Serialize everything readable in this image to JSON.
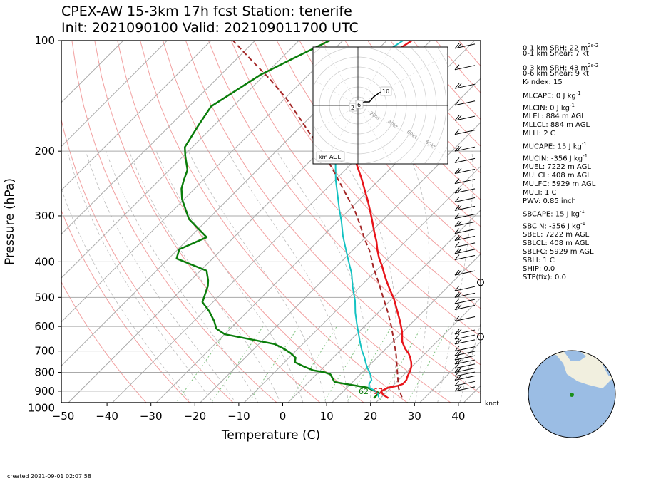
{
  "header": {
    "title_line1": "CPEX-AW 15-3km  17h fcst  Station: tenerife",
    "title_line2": "Init: 2021090100  Valid: 202109011700 UTC"
  },
  "footer": {
    "created": "created 2021-09-01 02:07:58"
  },
  "colors": {
    "temperature": "#e8141a",
    "dewpoint": "#0a7d0a",
    "wetbulb": "#13c2c2",
    "parcel": "#a32626"
  },
  "chart_data": {
    "type": "line",
    "subtype": "skew-T log-P diagram",
    "xlabel": "Temperature (C)",
    "ylabel": "Pressure (hPa)",
    "x_ticks": [
      -50,
      -40,
      -30,
      -20,
      -10,
      0,
      10,
      20,
      30,
      40
    ],
    "y_ticks": [
      100,
      200,
      300,
      400,
      500,
      600,
      700,
      800,
      900,
      1000
    ],
    "xlim": [
      -50,
      45
    ],
    "ylim": [
      1050,
      100
    ],
    "y_scale": "log",
    "skew": "isotherms tilted 45 degrees to the right",
    "grid": true,
    "series": [
      {
        "key": "temperature",
        "points": [
          [
            21.8,
            940
          ],
          [
            19.8,
            920
          ],
          [
            18.6,
            900
          ],
          [
            19.4,
            880
          ],
          [
            21.2,
            870
          ],
          [
            21.9,
            860
          ],
          [
            21.8,
            840
          ],
          [
            21.2,
            820
          ],
          [
            20.5,
            790
          ],
          [
            19.8,
            770
          ],
          [
            18.8,
            750
          ],
          [
            17.6,
            730
          ],
          [
            16.2,
            710
          ],
          [
            14.4,
            690
          ],
          [
            12.1,
            660
          ],
          [
            9.8,
            620
          ],
          [
            6.9,
            580
          ],
          [
            3.6,
            540
          ],
          [
            0.5,
            505
          ],
          [
            -2.7,
            475
          ],
          [
            -5.2,
            452
          ],
          [
            -7.6,
            430
          ],
          [
            -9.8,
            410
          ],
          [
            -12.3,
            390
          ],
          [
            -14.6,
            370
          ],
          [
            -16.6,
            352
          ],
          [
            -19.1,
            333
          ],
          [
            -21.9,
            312
          ],
          [
            -24.8,
            292
          ],
          [
            -27.8,
            273
          ],
          [
            -31.0,
            255
          ],
          [
            -34.2,
            238
          ],
          [
            -37.6,
            222
          ],
          [
            -41.0,
            207
          ],
          [
            -44.4,
            193
          ],
          [
            -47.3,
            178
          ],
          [
            -49.9,
            163
          ],
          [
            -52.6,
            148
          ],
          [
            -56.0,
            132
          ],
          [
            -57.3,
            118
          ],
          [
            -55.9,
            109
          ],
          [
            -54.3,
            100
          ]
        ]
      },
      {
        "key": "dewpoint",
        "points": [
          [
            18.5,
            940
          ],
          [
            18.5,
            910
          ],
          [
            14.6,
            880
          ],
          [
            5.9,
            850
          ],
          [
            3.2,
            810
          ],
          [
            1.5,
            800
          ],
          [
            -1.6,
            790
          ],
          [
            -4.8,
            770
          ],
          [
            -7.7,
            750
          ],
          [
            -8.5,
            730
          ],
          [
            -10.6,
            710
          ],
          [
            -13.2,
            690
          ],
          [
            -16.4,
            670
          ],
          [
            -30.0,
            630
          ],
          [
            -33.2,
            608
          ],
          [
            -35.4,
            580
          ],
          [
            -38.7,
            546
          ],
          [
            -42.4,
            515
          ],
          [
            -43.3,
            496
          ],
          [
            -44.8,
            466
          ],
          [
            -46.0,
            450
          ],
          [
            -48.6,
            423
          ],
          [
            -58.2,
            392
          ],
          [
            -59.7,
            370
          ],
          [
            -56.2,
            343
          ],
          [
            -64.4,
            306
          ],
          [
            -70.5,
            270
          ],
          [
            -73.0,
            253
          ],
          [
            -74.4,
            240
          ],
          [
            -75.9,
            225
          ],
          [
            -79.6,
            206
          ],
          [
            -81.7,
            195
          ],
          [
            -83.5,
            171
          ],
          [
            -85.0,
            151
          ],
          [
            -82.7,
            135
          ],
          [
            -81.0,
            124
          ],
          [
            -77.3,
            112
          ],
          [
            -73.0,
            100
          ]
        ]
      },
      {
        "key": "wetbulb",
        "points": [
          [
            19.4,
            935
          ],
          [
            18.5,
            915
          ],
          [
            16.8,
            895
          ],
          [
            15.0,
            880
          ],
          [
            14.2,
            860
          ],
          [
            13.9,
            840
          ],
          [
            12.3,
            810
          ],
          [
            10.3,
            780
          ],
          [
            8.7,
            755
          ],
          [
            7.2,
            730
          ],
          [
            5.1,
            700
          ],
          [
            2.8,
            665
          ],
          [
            0.5,
            630
          ],
          [
            -2.3,
            590
          ],
          [
            -5.2,
            550
          ],
          [
            -8.0,
            510
          ],
          [
            -11.5,
            470
          ],
          [
            -15.0,
            430
          ],
          [
            -18.5,
            398
          ],
          [
            -22.0,
            368
          ],
          [
            -25.5,
            340
          ],
          [
            -29.2,
            310
          ],
          [
            -32.5,
            287
          ],
          [
            -36.2,
            262
          ],
          [
            -39.8,
            240
          ],
          [
            -43.5,
            217
          ],
          [
            -47.0,
            195
          ],
          [
            -50.5,
            172
          ],
          [
            -53.5,
            150
          ],
          [
            -57.5,
            128
          ],
          [
            -59.0,
            117
          ],
          [
            -57.8,
            108
          ],
          [
            -56.3,
            100
          ]
        ]
      },
      {
        "key": "parcel",
        "points": [
          [
            24.7,
            935
          ],
          [
            21.9,
            884
          ],
          [
            18.0,
            800
          ],
          [
            13.9,
            720
          ],
          [
            9.6,
            650
          ],
          [
            5.8,
            595
          ],
          [
            1.8,
            545
          ],
          [
            -2.8,
            495
          ],
          [
            -6.8,
            455
          ],
          [
            -11.3,
            415
          ],
          [
            -15.8,
            375
          ],
          [
            -20.1,
            345
          ],
          [
            -24.0,
            318
          ],
          [
            -28.6,
            290
          ],
          [
            -33.0,
            268
          ],
          [
            -38.0,
            245
          ],
          [
            -43.5,
            222
          ],
          [
            -49.5,
            200
          ],
          [
            -56.0,
            180
          ],
          [
            -62.0,
            163
          ],
          [
            -70.0,
            143
          ],
          [
            -78.0,
            127
          ],
          [
            -87.0,
            112
          ],
          [
            -95.0,
            100
          ]
        ]
      }
    ],
    "surface_labels": {
      "dewpoint": "62",
      "temperature": "67"
    },
    "wind_units": "knot",
    "wind_barb_pressures": [
      105,
      120,
      135,
      150,
      165,
      180,
      200,
      215,
      230,
      245,
      260,
      275,
      290,
      305,
      320,
      335,
      350,
      365,
      380,
      395,
      435,
      480,
      500,
      520,
      540,
      580,
      630,
      650,
      670,
      700,
      720,
      740,
      760,
      780,
      800,
      820,
      840,
      870,
      900
    ],
    "hodograph": {
      "unit_label": "km AGL",
      "ring_labels": [
        "20kt",
        "40kt",
        "60kt",
        "80kt"
      ],
      "height_markers": [
        "2",
        "6",
        "10"
      ]
    },
    "indices": {
      "srh01": "0-1 km SRH: 22 m",
      "shear01": "0-1 km Shear: 7 kt",
      "srh03": "0-3 km SRH: 43 m",
      "shear06": "0-6 km Shear: 9 kt",
      "kindex": "K-index: 15",
      "mlcape": "MLCAPE: 0 J kg",
      "mlcin": "MLCIN: 0 J kg",
      "mlel": "MLEL: 884 m AGL",
      "mllcl": "MLLCL: 884 m AGL",
      "mlli": "MLLI: 2 C",
      "mucape": "MUCAPE: 15 J kg",
      "mucin": "MUCIN: -356 J kg",
      "muel": "MUEL: 7222 m AGL",
      "mulcl": "MULCL: 408 m AGL",
      "mulfc": "MULFC: 5929 m AGL",
      "muli": "MULI: 1 C",
      "pwv": "PWV: 0.85 inch",
      "sbcape": "SBCAPE: 15 J kg",
      "sbcin": "SBCIN: -356 J kg",
      "sbel": "SBEL: 7222 m AGL",
      "sblcl": "SBLCL: 408 m AGL",
      "sblfc": "SBLFC: 5929 m AGL",
      "sbli": "SBLI: 1 C",
      "ship": "SHIP: 0.0",
      "stp": "STP(fix): 0.0"
    },
    "unit_sups": {
      "m2s2": "2s-2",
      "jkg": "-1"
    }
  }
}
